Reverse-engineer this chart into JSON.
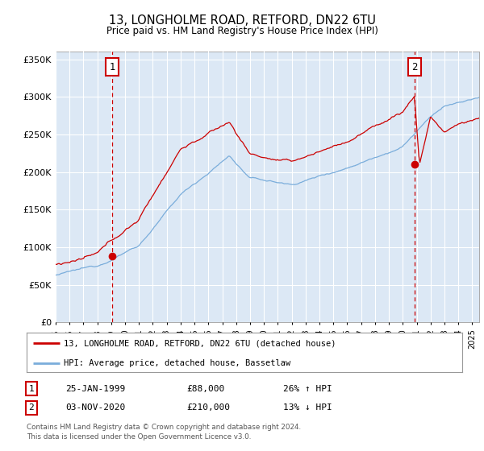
{
  "title": "13, LONGHOLME ROAD, RETFORD, DN22 6TU",
  "subtitle": "Price paid vs. HM Land Registry's House Price Index (HPI)",
  "bg_color": "#dce8f5",
  "ylim": [
    0,
    360000
  ],
  "yticks": [
    0,
    50000,
    100000,
    150000,
    200000,
    250000,
    300000,
    350000
  ],
  "ytick_labels": [
    "£0",
    "£50K",
    "£100K",
    "£150K",
    "£200K",
    "£250K",
    "£300K",
    "£350K"
  ],
  "sale1_x": 1999.07,
  "sale1_price": 88000,
  "sale2_x": 2020.84,
  "sale2_price": 210000,
  "red_color": "#cc0000",
  "blue_color": "#7aaddb",
  "legend_line1": "13, LONGHOLME ROAD, RETFORD, DN22 6TU (detached house)",
  "legend_line2": "HPI: Average price, detached house, Bassetlaw",
  "table_row1": [
    "1",
    "25-JAN-1999",
    "£88,000",
    "26% ↑ HPI"
  ],
  "table_row2": [
    "2",
    "03-NOV-2020",
    "£210,000",
    "13% ↓ HPI"
  ],
  "footnote": "Contains HM Land Registry data © Crown copyright and database right 2024.\nThis data is licensed under the Open Government Licence v3.0.",
  "xstart": 1995.0,
  "xend": 2025.5
}
